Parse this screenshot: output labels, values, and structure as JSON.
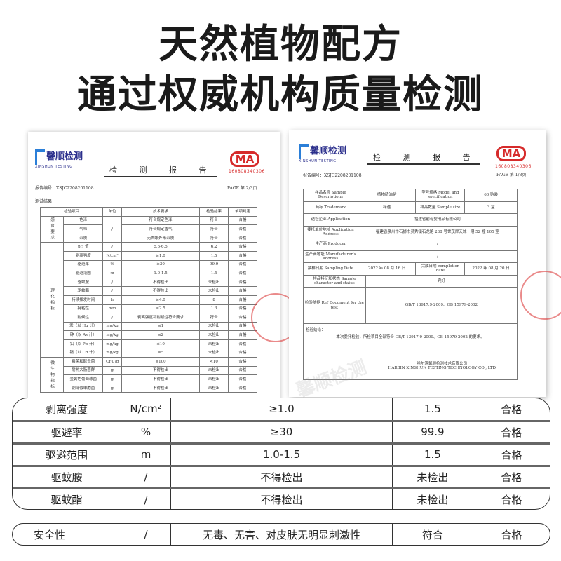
{
  "headline": {
    "line1": "天然植物配方",
    "line2": "通过权威机构质量检测"
  },
  "brand": {
    "logo_text": "馨顺检测",
    "logo_sub": "XINSHUN TESTING",
    "ma_text": "MA",
    "ma_number": "160808340306",
    "accent": "#2b2f8c",
    "stamp_color": "#d62b2b"
  },
  "doc_left": {
    "title": "检 测 报 告",
    "report_no": "报告编号：XSJC2208201108",
    "page": "PAGE 第 2/3页",
    "section": "测试结果",
    "headers": [
      "检验项目",
      "单位",
      "技术要求",
      "检验结果",
      "单项判定"
    ],
    "groups": [
      "感官要求",
      "理化指标",
      "微生物指标"
    ],
    "rows": [
      [
        "色泽",
        "/",
        "符合规定色泽",
        "符合",
        "合格"
      ],
      [
        "气味",
        "",
        "符合规定香气",
        "符合",
        "合格"
      ],
      [
        "杂质",
        "",
        "无肉眼外来杂质",
        "符合",
        "合格"
      ],
      [
        "pH 值",
        "/",
        "5.5-6.5",
        "6.2",
        "合格"
      ],
      [
        "剥离强度",
        "N/cm²",
        "≥1.0",
        "1.5",
        "合格"
      ],
      [
        "驱避率",
        "%",
        "≥30",
        "99.9",
        "合格"
      ],
      [
        "驱避范围",
        "m",
        "1.0-1.5",
        "1.5",
        "合格"
      ],
      [
        "驱蚊胺",
        "/",
        "不得检出",
        "未检出",
        "合格"
      ],
      [
        "驱蚊酯",
        "/",
        "不得检出",
        "未检出",
        "合格"
      ],
      [
        "持续挥发时间",
        "h",
        "≥4.0",
        "8",
        "合格"
      ],
      [
        "持粘性",
        "mm",
        "≤2.5",
        "1.3",
        "合格"
      ],
      [
        "耐候性",
        "/",
        "剥离强度和耐候性符合要求",
        "符合",
        "合格"
      ],
      [
        "汞（以 Hg 计）",
        "mg/kg",
        "≤1",
        "未检出",
        "合格"
      ],
      [
        "砷（以 As 计）",
        "mg/kg",
        "≤2",
        "未检出",
        "合格"
      ],
      [
        "铅（以 Pb 计）",
        "mg/kg",
        "≤10",
        "未检出",
        "合格"
      ],
      [
        "镉（以 Cd 计）",
        "mg/kg",
        "≤5",
        "未检出",
        "合格"
      ],
      [
        "霉菌和酵母菌",
        "CFU/g",
        "≤100",
        "<10",
        "合格"
      ],
      [
        "耐热大肠菌群",
        "g",
        "不得检出",
        "未检出",
        "合格"
      ],
      [
        "金黄色葡萄球菌",
        "g",
        "不得检出",
        "未检出",
        "合格"
      ],
      [
        "铜绿假单胞菌",
        "g",
        "不得检出",
        "未检出",
        "合格"
      ]
    ]
  },
  "doc_right": {
    "title": "检 测 报 告",
    "report_no": "报告编号：XSJC2208201108",
    "page": "PAGE 第 1/3页",
    "fields": {
      "sample_desc_label": "样品名称 Sample Descriptions",
      "sample_desc": "植物精油贴",
      "model_label": "型号规格 Model and specification",
      "model": "60 贴装",
      "trademark_label": "商标 Trademark",
      "trademark": "梓遇",
      "sample_size_label": "样品数量 Sample size",
      "sample_size": "3 盒",
      "application_label": "送检企业 Application",
      "application": "福建省前母婴用品有限公司",
      "address_label": "委托单位地址 Application Address",
      "address": "福建省泉州市石狮市灵秀镇石龙路 288 号世茂摩天城一期 52 幢 105 室",
      "producer_label": "生产商 Producer",
      "producer": "/",
      "manu_addr_label": "生产商地址 Manufacturer's address",
      "manu_addr": "/",
      "sampling_date_label": "抽样日期 Sampling Date",
      "sampling_date": "2022 年 08 月 16 日",
      "completion_label": "完成日期 completion date",
      "completion": "2022 年 08 月 20 日",
      "character_label": "样品特征和状态 Sample character and status",
      "character": "完好",
      "ref_label": "检验依据 Ref Document for the test",
      "ref": "GB/T 13917.9-2009、GB 15979-2002",
      "conclusion_label": "检验结论：",
      "conclusion": "本次委托检验，所检项目全部符合 GB/T 13917.9-2009、GB 15979-2002 的要求。",
      "company_cn": "哈尔滨馨顺检测技术有限公司",
      "company_en": "HARBIN XINSHUN TESTING TECHNOLOGY CO., LTD"
    }
  },
  "summary_table": {
    "rows": [
      [
        "剥离强度",
        "N/cm²",
        "≥1.0",
        "1.5",
        "合格"
      ],
      [
        "驱避率",
        "%",
        "≥30",
        "99.9",
        "合格"
      ],
      [
        "驱避范围",
        "m",
        "1.0-1.5",
        "1.5",
        "合格"
      ],
      [
        "驱蚊胺",
        "/",
        "不得检出",
        "未检出",
        "合格"
      ],
      [
        "驱蚊酯",
        "/",
        "不得检出",
        "未检出",
        "合格"
      ]
    ]
  },
  "safety_row": [
    "安全性",
    "/",
    "无毒、无害、对皮肤无明显刺激性",
    "符合",
    "合格"
  ]
}
